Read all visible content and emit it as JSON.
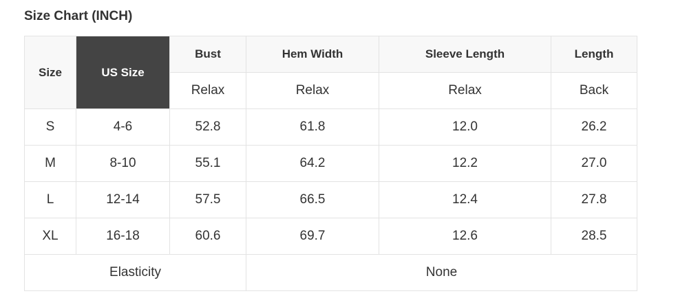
{
  "title": "Size Chart (INCH)",
  "headers": {
    "size": "Size",
    "us_size": "US Size",
    "cols": [
      "Bust",
      "Hem Width",
      "Sleeve Length",
      "Length"
    ],
    "sub": [
      "Relax",
      "Relax",
      "Relax",
      "Back"
    ]
  },
  "rows": [
    [
      "S",
      "4-6",
      "52.8",
      "61.8",
      "12.0",
      "26.2"
    ],
    [
      "M",
      "8-10",
      "55.1",
      "64.2",
      "12.2",
      "27.0"
    ],
    [
      "L",
      "12-14",
      "57.5",
      "66.5",
      "12.4",
      "27.8"
    ],
    [
      "XL",
      "16-18",
      "60.6",
      "69.7",
      "12.6",
      "28.5"
    ]
  ],
  "footer": {
    "label": "Elasticity",
    "value": "None"
  },
  "colors": {
    "header_bg": "#f8f8f8",
    "highlight_bg": "#444444",
    "border": "#e3e3e3",
    "text": "#333333"
  }
}
